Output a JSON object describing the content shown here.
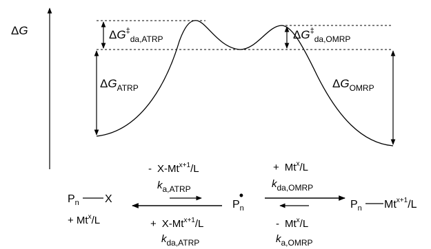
{
  "diagram": {
    "axis": {
      "label_delta": "Δ",
      "label_var": "G"
    },
    "barriers": {
      "atrp": {
        "delta": "Δ",
        "var": "G",
        "sup": "‡",
        "sub": "da,ATRP"
      },
      "omrp": {
        "delta": "Δ",
        "var": "G",
        "sup": "‡",
        "sub": "da,OMRP"
      }
    },
    "energies": {
      "atrp": {
        "delta": "Δ",
        "var": "G",
        "sub": "ATRP"
      },
      "omrp": {
        "delta": "Δ",
        "var": "G",
        "sub": "OMRP"
      }
    },
    "scheme": {
      "left_species": {
        "p": "P",
        "p_sub": "n",
        "x": "X",
        "plus_mt": "+ Mt",
        "mt_sup": "x",
        "mt_tail": "/L"
      },
      "radical": {
        "p": "P",
        "p_sub": "n",
        "dot": "•"
      },
      "right_species": {
        "p": "P",
        "p_sub": "n",
        "mt": "Mt",
        "mt_sup": "x+1",
        "mt_tail": "/L"
      },
      "atrp_top": {
        "minus": "-",
        "xmt": "X-Mt",
        "sup": "x+1",
        "tail": "/L"
      },
      "atrp_top_k": {
        "k": "k",
        "sub": "a,ATRP"
      },
      "atrp_bottom": {
        "plus": "+",
        "xmt": "X-Mt",
        "sup": "x+1",
        "tail": "/L"
      },
      "atrp_bottom_k": {
        "k": "k",
        "sub": "da,ATRP"
      },
      "omrp_top": {
        "plus": "+",
        "mt": "Mt",
        "sup": "x",
        "tail": "/L"
      },
      "omrp_top_k": {
        "k": "k",
        "sub": "da,OMRP"
      },
      "omrp_bottom": {
        "minus": "-",
        "mt": "Mt",
        "sup": "x",
        "tail": "/L"
      },
      "omrp_bottom_k": {
        "k": "k",
        "sub": "a,OMRP"
      }
    }
  }
}
